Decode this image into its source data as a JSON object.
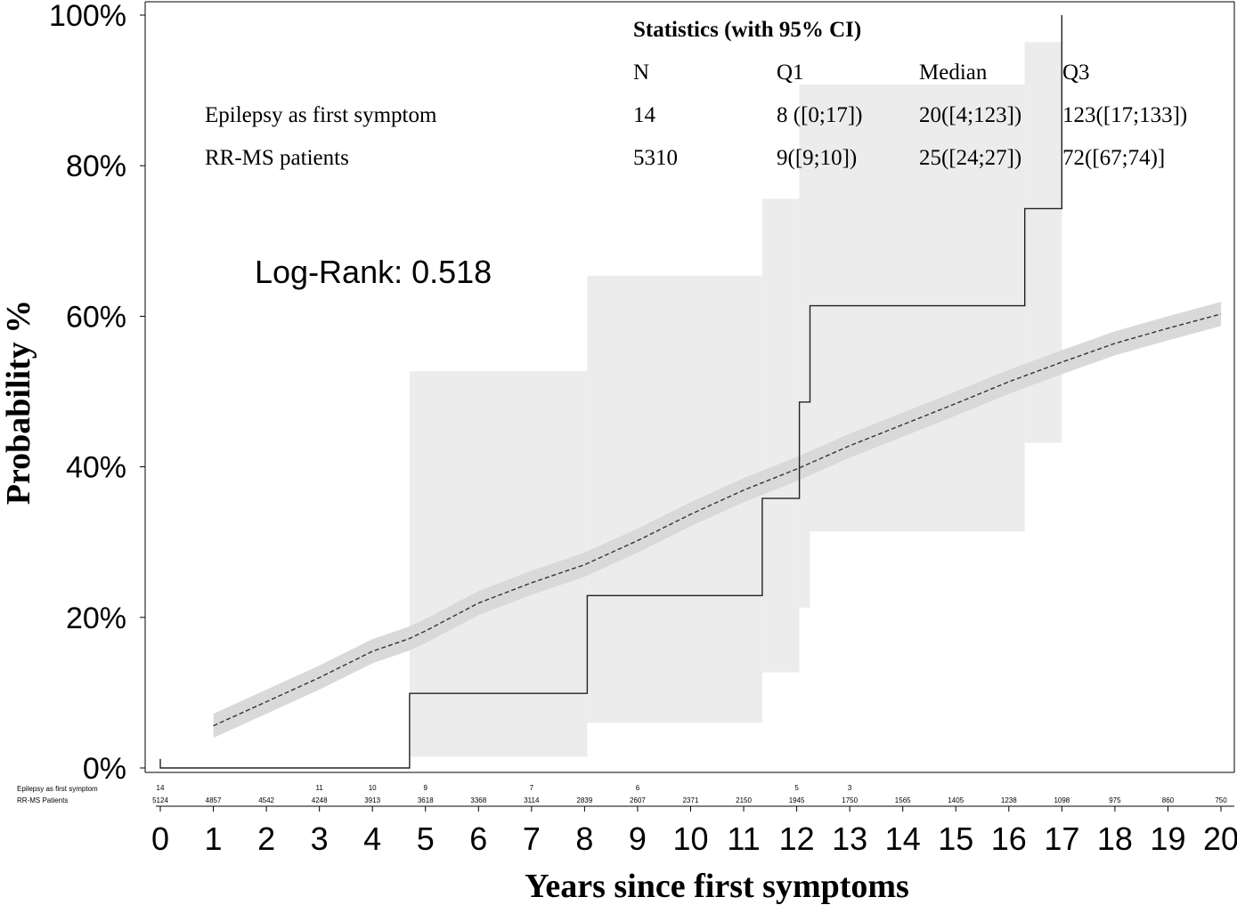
{
  "chart_data": {
    "type": "line",
    "xlabel": "Years since first symptoms",
    "ylabel": "Probability %",
    "xlim": [
      0,
      20
    ],
    "ylim": [
      0,
      100
    ],
    "x_ticks": [
      "0",
      "1",
      "2",
      "3",
      "4",
      "5",
      "6",
      "7",
      "8",
      "9",
      "10",
      "11",
      "12",
      "13",
      "14",
      "15",
      "16",
      "17",
      "18",
      "19",
      "20"
    ],
    "y_ticks": [
      "0%",
      "20%",
      "40%",
      "60%",
      "80%",
      "100%"
    ],
    "grid": false,
    "annotation": "Log-Rank: 0.518",
    "statistics_table": {
      "title": "Statistics (with 95% CI)",
      "headers": [
        "N",
        "Q1",
        "Median",
        "Q3"
      ],
      "rows": [
        {
          "label": "Epilepsy as first symptom",
          "n": "14",
          "q1": "8 ([0;17])",
          "median": "20([4;123])",
          "q3": "123([17;133])"
        },
        {
          "label": "RR-MS patients",
          "n": "5310",
          "q1": "9([9;10])",
          "median": "25([24;27])",
          "q3": "72([67;74)]"
        }
      ]
    },
    "series": [
      {
        "name": "Epilepsy as first symptom",
        "style": "step-solid",
        "points": [
          [
            0,
            1.2
          ],
          [
            0,
            0
          ],
          [
            4.7,
            0
          ],
          [
            4.7,
            9.9
          ],
          [
            8.05,
            9.9
          ],
          [
            8.05,
            22.9
          ],
          [
            11.35,
            22.9
          ],
          [
            11.35,
            35.8
          ],
          [
            12.05,
            35.8
          ],
          [
            12.05,
            48.6
          ],
          [
            12.25,
            48.6
          ],
          [
            12.25,
            61.4
          ],
          [
            16.3,
            61.4
          ],
          [
            16.3,
            74.3
          ],
          [
            17.0,
            74.3
          ],
          [
            17.0,
            100
          ]
        ],
        "ci_band": [
          [
            4.7,
            1.5,
            52.7
          ],
          [
            8.05,
            6.0,
            65.4
          ],
          [
            11.35,
            12.7,
            75.6
          ],
          [
            12.05,
            21.3,
            90.8
          ],
          [
            12.25,
            31.4,
            90.8
          ],
          [
            16.3,
            43.2,
            96.4
          ],
          [
            17.0,
            43.2,
            96.4
          ]
        ]
      },
      {
        "name": "RR-MS Patients",
        "style": "dashed",
        "x": [
          1.0,
          2.0,
          3.0,
          4.0,
          4.7,
          5.0,
          6.0,
          7.0,
          8.0,
          9.0,
          10.0,
          11.0,
          12.0,
          13.0,
          14.0,
          15.0,
          16.0,
          17.0,
          18.0,
          19.0,
          20.0
        ],
        "y": [
          5.6,
          8.8,
          12.0,
          15.5,
          17.2,
          18.2,
          21.9,
          24.6,
          27.0,
          30.2,
          33.7,
          36.9,
          39.7,
          42.8,
          45.6,
          48.4,
          51.3,
          53.9,
          56.4,
          58.4,
          60.3
        ],
        "ci_halfwidth": 1.6
      }
    ],
    "risk_table": {
      "row_labels": [
        "Epilepsy as first symptom",
        "RR-MS Patients"
      ],
      "epilepsy": [
        [
          "0",
          "14"
        ],
        [
          "3",
          "11"
        ],
        [
          "4",
          "10"
        ],
        [
          "5",
          "9"
        ],
        [
          "7",
          "7"
        ],
        [
          "9",
          "6"
        ],
        [
          "12",
          "5"
        ],
        [
          "13",
          "3"
        ]
      ],
      "rrms": [
        [
          "0",
          "5124"
        ],
        [
          "1",
          "4857"
        ],
        [
          "2",
          "4542"
        ],
        [
          "3",
          "4248"
        ],
        [
          "4",
          "3913"
        ],
        [
          "5",
          "3618"
        ],
        [
          "6",
          "3368"
        ],
        [
          "7",
          "3114"
        ],
        [
          "8",
          "2839"
        ],
        [
          "9",
          "2607"
        ],
        [
          "10",
          "2371"
        ],
        [
          "11",
          "2150"
        ],
        [
          "12",
          "1945"
        ],
        [
          "13",
          "1750"
        ],
        [
          "14",
          "1565"
        ],
        [
          "15",
          "1405"
        ],
        [
          "16",
          "1238"
        ],
        [
          "17",
          "1098"
        ],
        [
          "18",
          "975"
        ],
        [
          "19",
          "860"
        ],
        [
          "20",
          "750"
        ]
      ]
    }
  }
}
